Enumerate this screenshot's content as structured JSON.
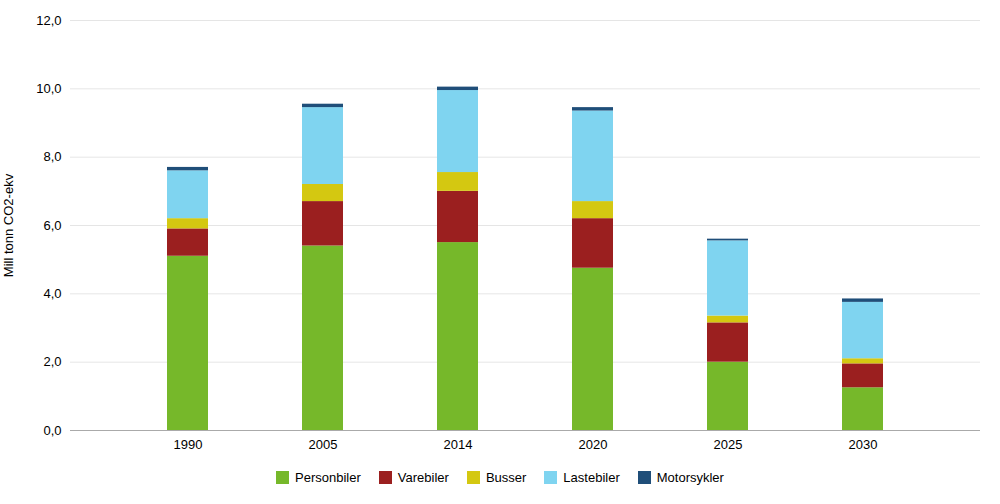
{
  "chart_data": {
    "type": "bar",
    "stacked": true,
    "categories": [
      "1990",
      "2005",
      "2014",
      "2020",
      "2025",
      "2030"
    ],
    "series": [
      {
        "name": "Personbiler",
        "color": "#76b82a",
        "values": [
          5.1,
          5.4,
          5.5,
          4.75,
          2.0,
          1.25
        ]
      },
      {
        "name": "Varebiler",
        "color": "#9b1f1f",
        "values": [
          0.8,
          1.3,
          1.5,
          1.45,
          1.15,
          0.7
        ]
      },
      {
        "name": "Busser",
        "color": "#d4c811",
        "values": [
          0.3,
          0.5,
          0.55,
          0.5,
          0.2,
          0.15
        ]
      },
      {
        "name": "Lastebiler",
        "color": "#7fd4f0",
        "values": [
          1.4,
          2.25,
          2.4,
          2.65,
          2.2,
          1.65
        ]
      },
      {
        "name": "Motorsykler",
        "color": "#1f4e79",
        "values": [
          0.1,
          0.1,
          0.1,
          0.1,
          0.05,
          0.1
        ]
      }
    ],
    "ylabel": "Mill tonn CO2-ekv",
    "ylim": [
      0,
      12
    ],
    "yticks": [
      {
        "value": 0,
        "label": "0,0"
      },
      {
        "value": 2,
        "label": "2,0"
      },
      {
        "value": 4,
        "label": "4,0"
      },
      {
        "value": 6,
        "label": "6,0"
      },
      {
        "value": 8,
        "label": "8,0"
      },
      {
        "value": 10,
        "label": "10,0"
      },
      {
        "value": 12,
        "label": "12,0"
      }
    ],
    "grid": true,
    "legend": "bottom"
  }
}
